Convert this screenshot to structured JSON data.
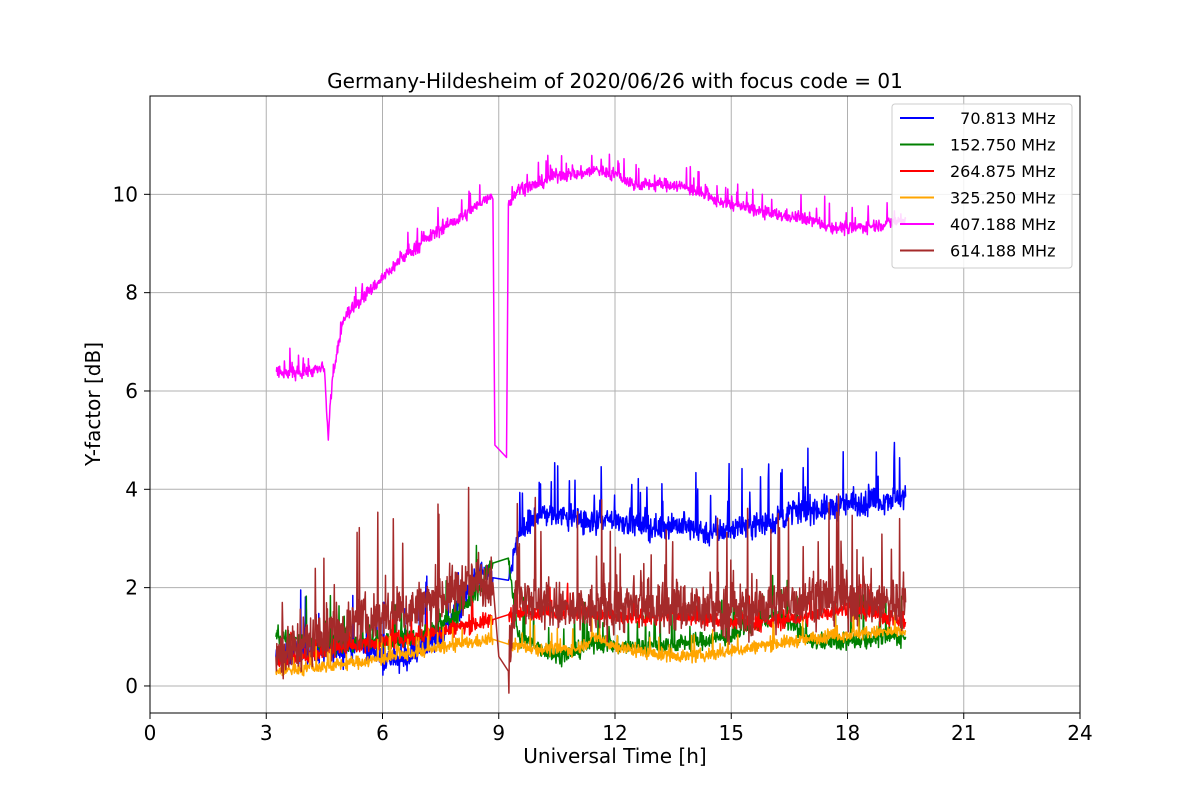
{
  "chart_data": {
    "type": "line",
    "title": "Germany-Hildesheim of 2020/06/26 with focus code = 01",
    "xlabel": "Universal Time [h]",
    "ylabel": "Y-factor [dB]",
    "xlim": [
      0,
      24
    ],
    "ylim": [
      -0.55,
      12.0
    ],
    "xticks": [
      "0",
      "3",
      "6",
      "9",
      "12",
      "15",
      "18",
      "21",
      "24"
    ],
    "yticks": [
      "0",
      "2",
      "4",
      "6",
      "8",
      "10"
    ],
    "grid": true,
    "legend_position": "top-right",
    "data_gap_hours": [
      8.85,
      9.25
    ],
    "series": [
      {
        "name": "  70.813 MHz",
        "color": "#0000ff",
        "points": [
          [
            3.25,
            0.6
          ],
          [
            4.0,
            0.7
          ],
          [
            5.0,
            0.75
          ],
          [
            5.5,
            0.8
          ],
          [
            6.0,
            0.6
          ],
          [
            6.5,
            0.5
          ],
          [
            7.0,
            0.8
          ],
          [
            7.5,
            1.0
          ],
          [
            8.0,
            1.6
          ],
          [
            8.5,
            2.3
          ],
          [
            8.85,
            2.2
          ],
          [
            9.25,
            2.15
          ],
          [
            9.5,
            3.0
          ],
          [
            10.0,
            3.5
          ],
          [
            10.5,
            3.5
          ],
          [
            11.0,
            3.4
          ],
          [
            11.5,
            3.3
          ],
          [
            12.0,
            3.4
          ],
          [
            12.5,
            3.3
          ],
          [
            13.0,
            3.2
          ],
          [
            13.5,
            3.3
          ],
          [
            14.0,
            3.2
          ],
          [
            14.5,
            3.1
          ],
          [
            15.0,
            3.2
          ],
          [
            15.5,
            3.3
          ],
          [
            16.0,
            3.3
          ],
          [
            16.5,
            3.5
          ],
          [
            17.0,
            3.6
          ],
          [
            17.5,
            3.6
          ],
          [
            18.0,
            3.7
          ],
          [
            18.5,
            3.7
          ],
          [
            19.0,
            3.8
          ],
          [
            19.5,
            3.85
          ]
        ]
      },
      {
        "name": "152.750 MHz",
        "color": "#008000",
        "points": [
          [
            3.25,
            1.0
          ],
          [
            4.0,
            0.9
          ],
          [
            5.0,
            0.85
          ],
          [
            6.0,
            0.9
          ],
          [
            7.0,
            1.0
          ],
          [
            8.0,
            1.5
          ],
          [
            8.5,
            2.0
          ],
          [
            8.85,
            2.5
          ],
          [
            9.25,
            2.6
          ],
          [
            9.5,
            1.0
          ],
          [
            10.0,
            0.8
          ],
          [
            10.5,
            0.6
          ],
          [
            11.0,
            0.7
          ],
          [
            11.5,
            0.9
          ],
          [
            12.0,
            0.8
          ],
          [
            13.0,
            0.8
          ],
          [
            14.0,
            0.9
          ],
          [
            15.0,
            1.0
          ],
          [
            16.0,
            1.4
          ],
          [
            16.5,
            1.3
          ],
          [
            17.0,
            0.9
          ],
          [
            18.0,
            0.9
          ],
          [
            19.0,
            1.0
          ],
          [
            19.5,
            1.0
          ]
        ]
      },
      {
        "name": "264.875 MHz",
        "color": "#ff0000",
        "points": [
          [
            3.25,
            0.55
          ],
          [
            4.0,
            0.6
          ],
          [
            5.0,
            0.8
          ],
          [
            6.0,
            0.9
          ],
          [
            7.0,
            1.0
          ],
          [
            8.0,
            1.2
          ],
          [
            8.85,
            1.35
          ],
          [
            9.25,
            1.45
          ],
          [
            10.0,
            1.5
          ],
          [
            11.0,
            1.5
          ],
          [
            12.0,
            1.4
          ],
          [
            13.0,
            1.4
          ],
          [
            14.0,
            1.4
          ],
          [
            15.0,
            1.3
          ],
          [
            16.0,
            1.3
          ],
          [
            17.0,
            1.4
          ],
          [
            18.0,
            1.6
          ],
          [
            19.0,
            1.4
          ],
          [
            19.5,
            1.3
          ]
        ]
      },
      {
        "name": "325.250 MHz",
        "color": "#ffa500",
        "points": [
          [
            3.25,
            0.3
          ],
          [
            4.0,
            0.35
          ],
          [
            5.0,
            0.45
          ],
          [
            6.0,
            0.55
          ],
          [
            7.0,
            0.7
          ],
          [
            8.0,
            0.85
          ],
          [
            8.85,
            0.95
          ],
          [
            9.25,
            0.85
          ],
          [
            10.0,
            0.75
          ],
          [
            11.0,
            0.75
          ],
          [
            11.5,
            1.0
          ],
          [
            12.0,
            0.8
          ],
          [
            13.0,
            0.65
          ],
          [
            14.0,
            0.6
          ],
          [
            15.0,
            0.7
          ],
          [
            16.0,
            0.85
          ],
          [
            17.0,
            0.95
          ],
          [
            18.0,
            1.05
          ],
          [
            19.0,
            1.1
          ],
          [
            19.5,
            1.1
          ]
        ]
      },
      {
        "name": "407.188 MHz",
        "color": "#ff00ff",
        "points": [
          [
            3.25,
            6.4
          ],
          [
            3.5,
            6.35
          ],
          [
            4.0,
            6.4
          ],
          [
            4.5,
            6.45
          ],
          [
            4.6,
            5.0
          ],
          [
            4.7,
            6.2
          ],
          [
            5.0,
            7.5
          ],
          [
            5.5,
            7.9
          ],
          [
            6.0,
            8.3
          ],
          [
            6.5,
            8.7
          ],
          [
            7.0,
            9.0
          ],
          [
            7.5,
            9.3
          ],
          [
            8.0,
            9.5
          ],
          [
            8.5,
            9.8
          ],
          [
            8.8,
            10.0
          ],
          [
            8.85,
            9.9
          ],
          [
            8.9,
            4.9
          ],
          [
            9.2,
            4.65
          ],
          [
            9.25,
            9.8
          ],
          [
            9.5,
            10.1
          ],
          [
            10.0,
            10.2
          ],
          [
            10.5,
            10.4
          ],
          [
            11.0,
            10.4
          ],
          [
            11.5,
            10.5
          ],
          [
            12.0,
            10.4
          ],
          [
            12.5,
            10.2
          ],
          [
            13.0,
            10.2
          ],
          [
            13.5,
            10.2
          ],
          [
            14.0,
            10.1
          ],
          [
            14.5,
            9.9
          ],
          [
            15.0,
            9.8
          ],
          [
            15.5,
            9.7
          ],
          [
            16.0,
            9.6
          ],
          [
            16.5,
            9.55
          ],
          [
            17.0,
            9.5
          ],
          [
            17.5,
            9.35
          ],
          [
            18.0,
            9.3
          ],
          [
            18.5,
            9.35
          ],
          [
            19.0,
            9.4
          ],
          [
            19.5,
            9.5
          ]
        ]
      },
      {
        "name": "614.188 MHz",
        "color": "#a52a2a",
        "points": [
          [
            3.25,
            0.6
          ],
          [
            4.0,
            0.9
          ],
          [
            5.0,
            1.2
          ],
          [
            6.0,
            1.4
          ],
          [
            7.0,
            1.6
          ],
          [
            7.5,
            1.8
          ],
          [
            8.0,
            2.0
          ],
          [
            8.5,
            2.1
          ],
          [
            8.85,
            2.1
          ],
          [
            9.0,
            0.6
          ],
          [
            9.25,
            0.3
          ],
          [
            9.5,
            2.0
          ],
          [
            10.0,
            1.7
          ],
          [
            10.5,
            1.6
          ],
          [
            11.0,
            1.5
          ],
          [
            12.0,
            1.6
          ],
          [
            13.0,
            1.6
          ],
          [
            14.0,
            1.6
          ],
          [
            15.0,
            1.5
          ],
          [
            16.0,
            1.6
          ],
          [
            17.0,
            1.8
          ],
          [
            18.0,
            1.8
          ],
          [
            19.0,
            1.7
          ],
          [
            19.5,
            1.7
          ]
        ]
      }
    ]
  }
}
